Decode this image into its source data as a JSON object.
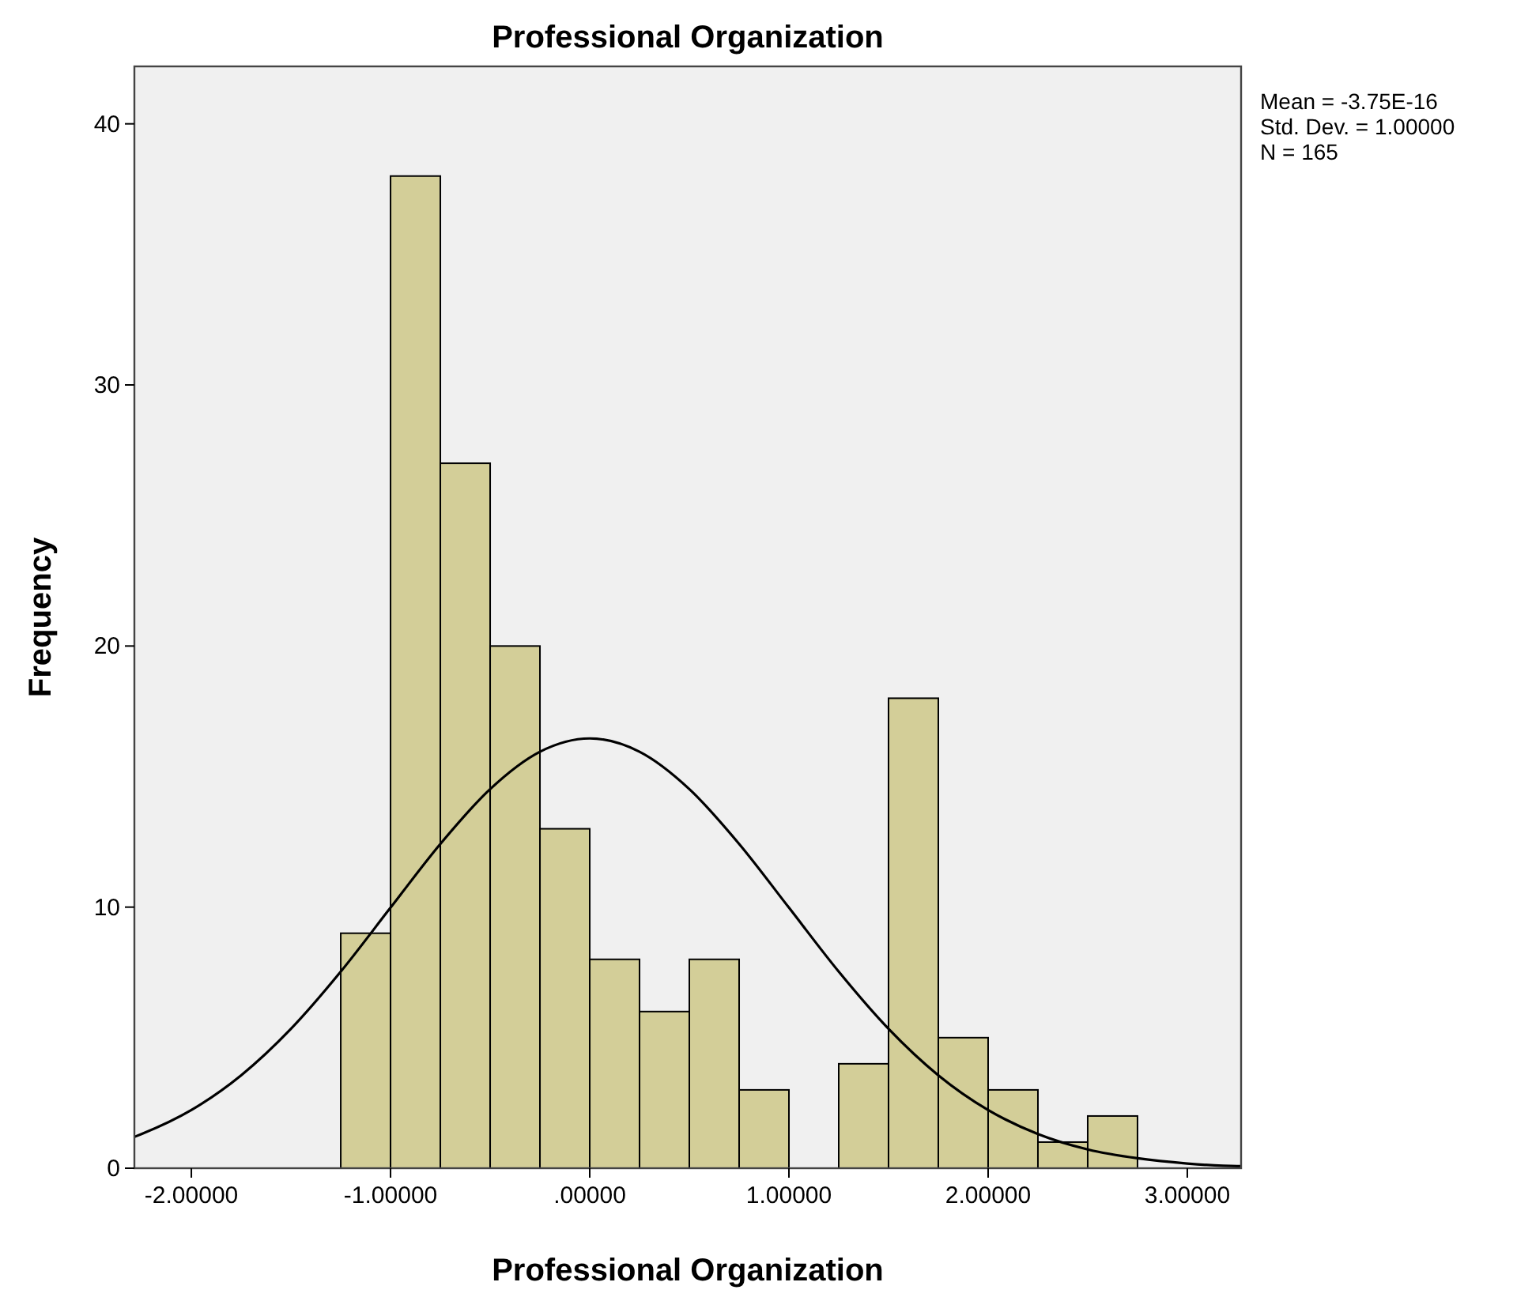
{
  "chart_data": {
    "type": "histogram",
    "title": "Professional Organization",
    "xlabel": "Professional Organization",
    "ylabel": "Frequency",
    "bins": [
      -1.25,
      -1.0,
      -0.75,
      -0.5,
      -0.25,
      0,
      0.25,
      0.5,
      0.75,
      1.0,
      1.25,
      1.5,
      1.75,
      2.0,
      2.25,
      2.5,
      2.75
    ],
    "values": [
      9,
      38,
      27,
      20,
      13,
      8,
      6,
      8,
      3,
      0,
      4,
      18,
      5,
      3,
      1,
      2
    ],
    "color": "#d3ce98",
    "series": [
      {
        "type": "line",
        "color": "#000000",
        "x": [
          -2.286,
          -2.25,
          -2.0,
          -1.75,
          -1.5,
          -1.25,
          -1.0,
          -0.75,
          -0.5,
          -0.25,
          0,
          0.25,
          0.5,
          0.75,
          1.0,
          1.25,
          1.5,
          1.75,
          2.0,
          2.25,
          2.5,
          2.75,
          3.0,
          3.25,
          3.27
        ],
        "values": [
          1.2,
          1.31,
          2.23,
          3.56,
          5.34,
          7.53,
          9.98,
          12.42,
          14.52,
          15.95,
          16.46,
          15.95,
          14.52,
          12.42,
          9.98,
          7.53,
          5.34,
          3.56,
          2.23,
          1.31,
          0.72,
          0.38,
          0.18,
          0.08,
          0.08
        ]
      }
    ],
    "xlim": [
      -2.286,
      3.27
    ],
    "ylim": [
      0,
      42.2
    ],
    "xticks": [
      {
        "value": -2,
        "label": "-2.00000"
      },
      {
        "value": -1,
        "label": "-1.00000"
      },
      {
        "value": 0,
        "label": ".00000"
      },
      {
        "value": 1,
        "label": "1.00000"
      },
      {
        "value": 2,
        "label": "2.00000"
      },
      {
        "value": 3,
        "label": "3.00000"
      }
    ],
    "yticks": [
      0,
      10,
      20,
      30,
      40
    ],
    "grid": false,
    "annotations": [
      "Mean = -3.75E-16",
      "Std. Dev. = 1.00000",
      "N = 165"
    ]
  }
}
